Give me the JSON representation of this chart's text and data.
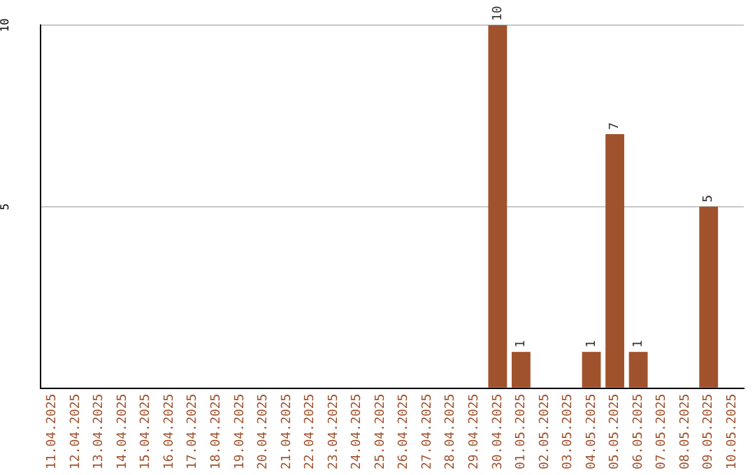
{
  "chart_data": {
    "type": "bar",
    "categories": [
      "11.04.2025",
      "12.04.2025",
      "13.04.2025",
      "14.04.2025",
      "15.04.2025",
      "16.04.2025",
      "17.04.2025",
      "18.04.2025",
      "19.04.2025",
      "20.04.2025",
      "21.04.2025",
      "22.04.2025",
      "23.04.2025",
      "24.04.2025",
      "25.04.2025",
      "26.04.2025",
      "27.04.2025",
      "28.04.2025",
      "29.04.2025",
      "30.04.2025",
      "01.05.2025",
      "02.05.2025",
      "03.05.2025",
      "04.05.2025",
      "05.05.2025",
      "06.05.2025",
      "07.05.2025",
      "08.05.2025",
      "09.05.2025",
      "10.05.2025"
    ],
    "values": [
      0,
      0,
      0,
      0,
      0,
      0,
      0,
      0,
      0,
      0,
      0,
      0,
      0,
      0,
      0,
      0,
      0,
      0,
      0,
      10,
      1,
      0,
      0,
      1,
      7,
      1,
      0,
      0,
      5,
      0
    ],
    "value_labels": [
      null,
      null,
      null,
      null,
      null,
      null,
      null,
      null,
      null,
      null,
      null,
      null,
      null,
      null,
      null,
      null,
      null,
      null,
      null,
      "10",
      "1",
      null,
      null,
      "1",
      "7",
      "1",
      null,
      null,
      "5",
      null
    ],
    "color": "#a0522d",
    "ylim": [
      0,
      10
    ],
    "yticks": [
      {
        "value": 0,
        "label": null
      },
      5,
      10
    ],
    "grid": "y"
  }
}
